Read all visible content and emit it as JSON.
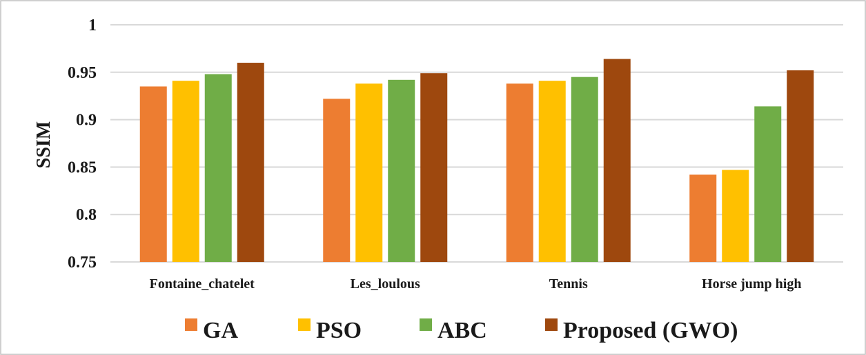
{
  "chart_data": {
    "type": "bar",
    "title": "",
    "xlabel": "",
    "ylabel": "SSIM",
    "ylim": [
      0.75,
      1
    ],
    "yticks": [
      "0.75",
      "0.8",
      "0.85",
      "0.9",
      "0.95",
      "1"
    ],
    "ytick_values": [
      0.75,
      0.8,
      0.85,
      0.9,
      0.95,
      1
    ],
    "categories": [
      "Fontaine_chatelet",
      "Les_loulous",
      "Tennis",
      "Horse jump high"
    ],
    "series": [
      {
        "name": "GA",
        "color": "#ED7D31",
        "values": [
          0.935,
          0.922,
          0.938,
          0.842
        ]
      },
      {
        "name": "PSO",
        "color": "#FFC000",
        "values": [
          0.941,
          0.938,
          0.941,
          0.847
        ]
      },
      {
        "name": "ABC",
        "color": "#70AD47",
        "values": [
          0.948,
          0.942,
          0.945,
          0.914
        ]
      },
      {
        "name": "Proposed (GWO)",
        "color": "#9E480E",
        "values": [
          0.96,
          0.949,
          0.964,
          0.952
        ]
      }
    ],
    "grid": true,
    "legend": "bottom"
  },
  "style": {
    "grid_color": "#d9d9d9",
    "frame_color": "#bfbfbf"
  }
}
